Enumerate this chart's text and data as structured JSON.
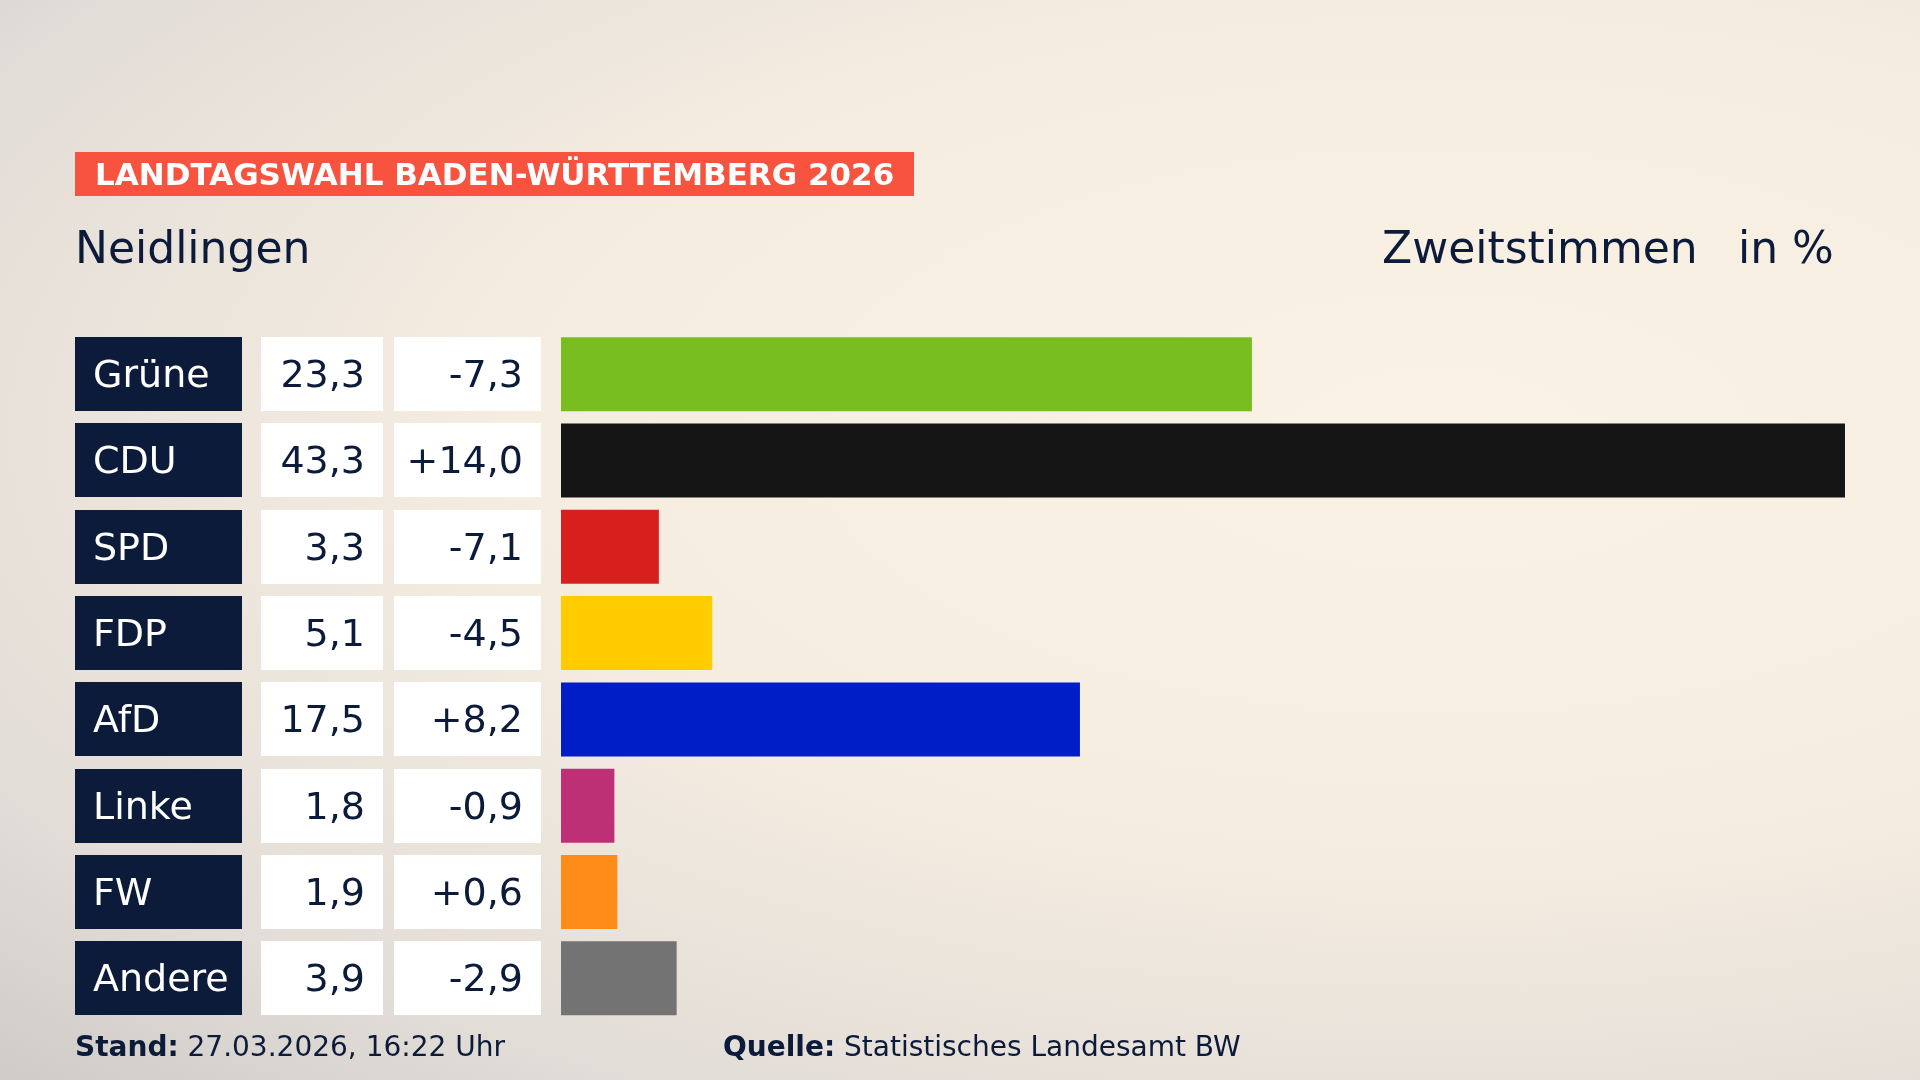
{
  "chart_data": {
    "type": "bar",
    "orientation": "horizontal",
    "title": "LANDTAGSWAHL BADEN-WÜRTTEMBERG 2026",
    "subtitle": "Neidlingen",
    "xlabel": "Zweitstimmen",
    "categories": [
      "Grüne",
      "CDU",
      "SPD",
      "FDP",
      "AfD",
      "Linke",
      "FW",
      "Andere"
    ],
    "values": [
      23.3,
      43.3,
      3.3,
      5.1,
      17.5,
      1.8,
      1.9,
      3.9
    ],
    "value_labels": [
      "23,3",
      "43,3",
      "3,3",
      "5,1",
      "17,5",
      "1,8",
      "1,9",
      "3,9"
    ],
    "colors": [
      "#78be20",
      "#151515",
      "#d7201d",
      "#ffcc00",
      "#001ec8",
      "#be3075",
      "#ff8c19",
      "#737373"
    ],
    "annotations": [
      "in %",
      "-7,3",
      "+14,0",
      "-7,1",
      "-4,5",
      "+8,2",
      "-0,9",
      "+0,6",
      "-2,9",
      "Stand: 27.03.2026, 16:22 Uhr",
      "Quelle: Statistisches Landesamt BW"
    ],
    "grid": false,
    "legend": false
  }
}
